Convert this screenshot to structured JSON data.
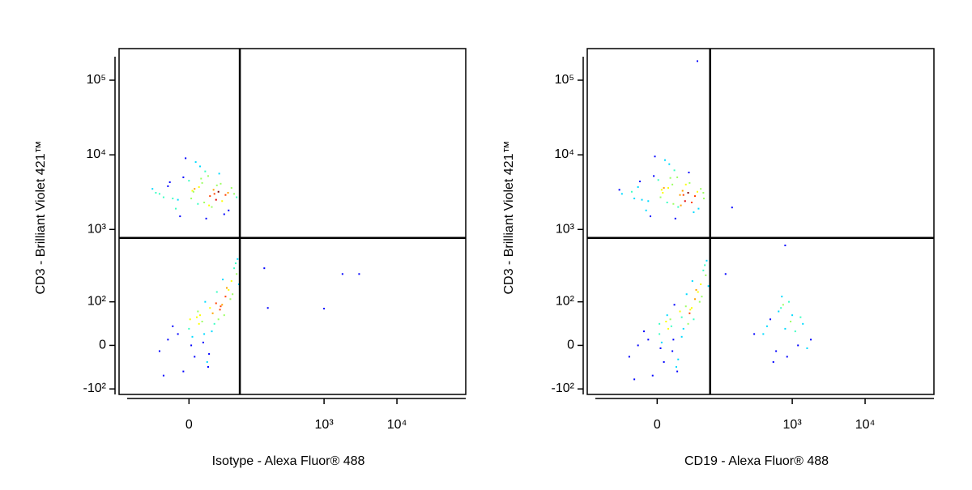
{
  "chart_data": [
    {
      "type": "scatter",
      "x_label": "Isotype - Alexa Fluor® 488",
      "y_label": "CD3 - Brilliant Violet 421™",
      "xscale": "biexponential",
      "yscale": "biexponential",
      "xlim": [
        -126,
        88000
      ],
      "ylim": [
        -121,
        265000
      ],
      "xticks": [
        0,
        {
          "value": 1000,
          "label": "10³"
        },
        {
          "value": 10000,
          "label": "10⁴"
        }
      ],
      "yticks": [
        {
          "value": -100,
          "label": "-10²"
        },
        0,
        {
          "value": 100,
          "label": "10²"
        },
        {
          "value": 1000,
          "label": "10³"
        },
        {
          "value": 10000,
          "label": "10⁴"
        },
        {
          "value": 100000,
          "label": "10⁵"
        }
      ],
      "quadrant_gate": {
        "x": 67,
        "y": 770
      },
      "color": "#0000ff",
      "x": [
        -30,
        -10,
        5,
        12,
        20,
        -5,
        30,
        45,
        -20,
        8,
        15,
        25,
        -15,
        0,
        35,
        50,
        -35,
        10,
        22,
        40,
        -8,
        3,
        18,
        28,
        -25,
        6,
        14,
        33,
        55,
        -12,
        2,
        24,
        38,
        -40,
        11,
        19,
        60,
        -3,
        9,
        27,
        44,
        -18,
        16,
        4,
        31,
        0,
        10,
        20,
        30,
        -10,
        5,
        15,
        25,
        40,
        50,
        -20,
        8,
        18,
        35,
        45,
        60,
        -30,
        2,
        12,
        28,
        38,
        55,
        -5,
        22,
        32,
        48,
        65,
        -15,
        7,
        17,
        27,
        42,
        58,
        3,
        13,
        23,
        33,
        52,
        -25,
        9,
        19,
        36,
        62,
        1,
        14,
        168,
        150,
        1000,
        1790,
        3030
      ],
      "y": [
        3000,
        2500,
        3500,
        4200,
        2800,
        5000,
        3200,
        1800,
        3800,
        2200,
        6000,
        3000,
        2600,
        4500,
        2400,
        3600,
        3100,
        7000,
        2000,
        2900,
        1500,
        3300,
        5200,
        3900,
        2700,
        8000,
        2300,
        4100,
        3000,
        1900,
        2600,
        3400,
        1600,
        3500,
        4800,
        2100,
        2700,
        9000,
        3700,
        2500,
        3100,
        4300,
        1400,
        3200,
        5600,
        30,
        60,
        80,
        50,
        20,
        -20,
        100,
        40,
        120,
        200,
        10,
        70,
        -40,
        90,
        150,
        250,
        -10,
        0,
        45,
        140,
        60,
        300,
        -50,
        25,
        75,
        110,
        180,
        35,
        55,
        -30,
        95,
        160,
        350,
        15,
        5,
        65,
        85,
        130,
        -60,
        40,
        -15,
        210,
        400,
        50,
        20,
        80,
        300,
        78,
        250,
        250
      ]
    },
    {
      "type": "scatter",
      "x_label": "CD19 - Alexa Fluor® 488",
      "y_label": "CD3 - Brilliant Violet 421™",
      "xscale": "biexponential",
      "yscale": "biexponential",
      "xlim": [
        -126,
        88000
      ],
      "ylim": [
        -121,
        265000
      ],
      "xticks": [
        0,
        {
          "value": 1000,
          "label": "10³"
        },
        {
          "value": 10000,
          "label": "10⁴"
        }
      ],
      "yticks": [
        {
          "value": -100,
          "label": "-10²"
        },
        0,
        {
          "value": 100,
          "label": "10²"
        },
        {
          "value": 1000,
          "label": "10³"
        },
        {
          "value": 10000,
          "label": "10⁴"
        },
        {
          "value": 100000,
          "label": "10⁵"
        }
      ],
      "quadrant_gate": {
        "x": 72,
        "y": 770
      },
      "color": "#0000ff",
      "x": [
        -25,
        -8,
        6,
        14,
        22,
        -3,
        32,
        48,
        -18,
        9,
        16,
        26,
        -14,
        1,
        37,
        52,
        -38,
        11,
        23,
        42,
        -6,
        4,
        19,
        29,
        -22,
        7,
        15,
        34,
        57,
        -10,
        3,
        25,
        40,
        -42,
        12,
        20,
        58,
        -2,
        10,
        28,
        46,
        -16,
        17,
        5,
        33,
        2,
        12,
        22,
        32,
        -8,
        6,
        16,
        26,
        42,
        52,
        -18,
        9,
        19,
        37,
        47,
        62,
        -28,
        3,
        13,
        30,
        40,
        57,
        -4,
        24,
        34,
        50,
        68,
        -12,
        8,
        18,
        29,
        44,
        60,
        4,
        14,
        24,
        35,
        54,
        -22,
        10,
        20,
        38,
        64,
        2,
        15,
        400,
        500,
        600,
        700,
        800,
        900,
        1000,
        1200,
        1400,
        1800,
        550,
        650,
        750,
        850,
        950,
        1100,
        1300,
        450,
        1600,
        720,
        46,
        148,
        800,
        120,
        300
      ],
      "y": [
        3200,
        2400,
        3600,
        4000,
        2900,
        5200,
        3100,
        1900,
        3700,
        2300,
        6200,
        2900,
        2500,
        4600,
        2300,
        3500,
        3000,
        7500,
        2100,
        2800,
        1500,
        3400,
        5000,
        4000,
        2600,
        8500,
        2200,
        4200,
        3100,
        1800,
        2700,
        3300,
        1700,
        3400,
        4900,
        2000,
        2600,
        9500,
        3600,
        2400,
        3200,
        4400,
        1400,
        3100,
        5800,
        20,
        50,
        70,
        40,
        10,
        -30,
        90,
        30,
        110,
        180,
        0,
        60,
        -50,
        80,
        140,
        240,
        -20,
        -5,
        35,
        130,
        50,
        280,
        -60,
        15,
        65,
        100,
        170,
        25,
        45,
        -40,
        85,
        150,
        330,
        5,
        -10,
        55,
        75,
        120,
        -70,
        30,
        -25,
        200,
        380,
        40,
        10,
        20,
        50,
        -10,
        80,
        30,
        100,
        60,
        0,
        40,
        10,
        -30,
        70,
        90,
        -20,
        45,
        25,
        55,
        35,
        -5,
        120,
        180000,
        1970,
        610,
        250,
        20
      ]
    }
  ]
}
